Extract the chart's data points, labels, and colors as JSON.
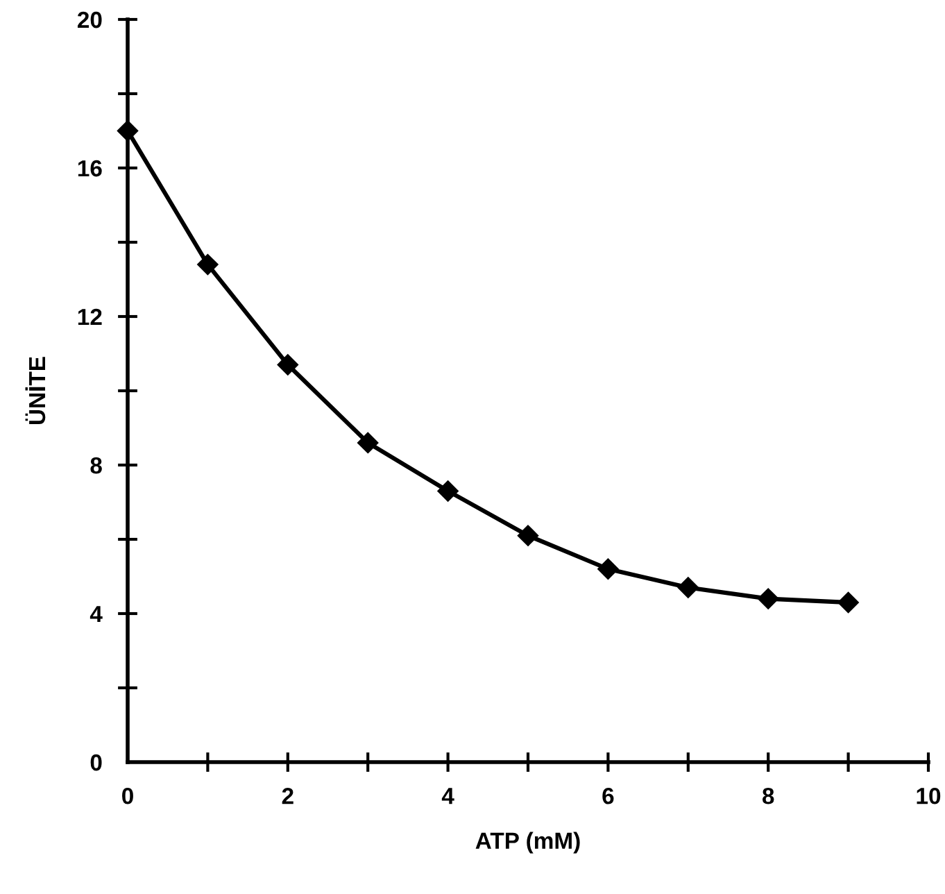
{
  "chart_data": {
    "type": "line",
    "xlabel": "ATP (mM)",
    "ylabel": "ÜNİTE",
    "x": [
      0,
      1,
      2,
      3,
      4,
      5,
      6,
      7,
      8,
      9
    ],
    "series": [
      {
        "color": "#000000",
        "values": [
          17.0,
          13.4,
          10.7,
          8.6,
          7.3,
          6.1,
          5.2,
          4.7,
          4.4,
          4.3
        ]
      }
    ],
    "xlim": [
      0,
      10
    ],
    "ylim": [
      0,
      20
    ],
    "xticks": [
      0,
      {
        "value": 1,
        "label": null
      },
      2,
      {
        "value": 3,
        "label": null
      },
      4,
      {
        "value": 5,
        "label": null
      },
      6,
      {
        "value": 7,
        "label": null
      },
      8,
      {
        "value": 9,
        "label": null
      },
      10
    ],
    "yticks": [
      0,
      {
        "value": 2,
        "label": null
      },
      4,
      {
        "value": 6,
        "label": null
      },
      8,
      {
        "value": 10,
        "label": null
      },
      12,
      {
        "value": 14,
        "label": null
      },
      16,
      {
        "value": 18,
        "label": null
      },
      20
    ],
    "marker": "diamond",
    "line_style": "solid",
    "grid": false
  }
}
